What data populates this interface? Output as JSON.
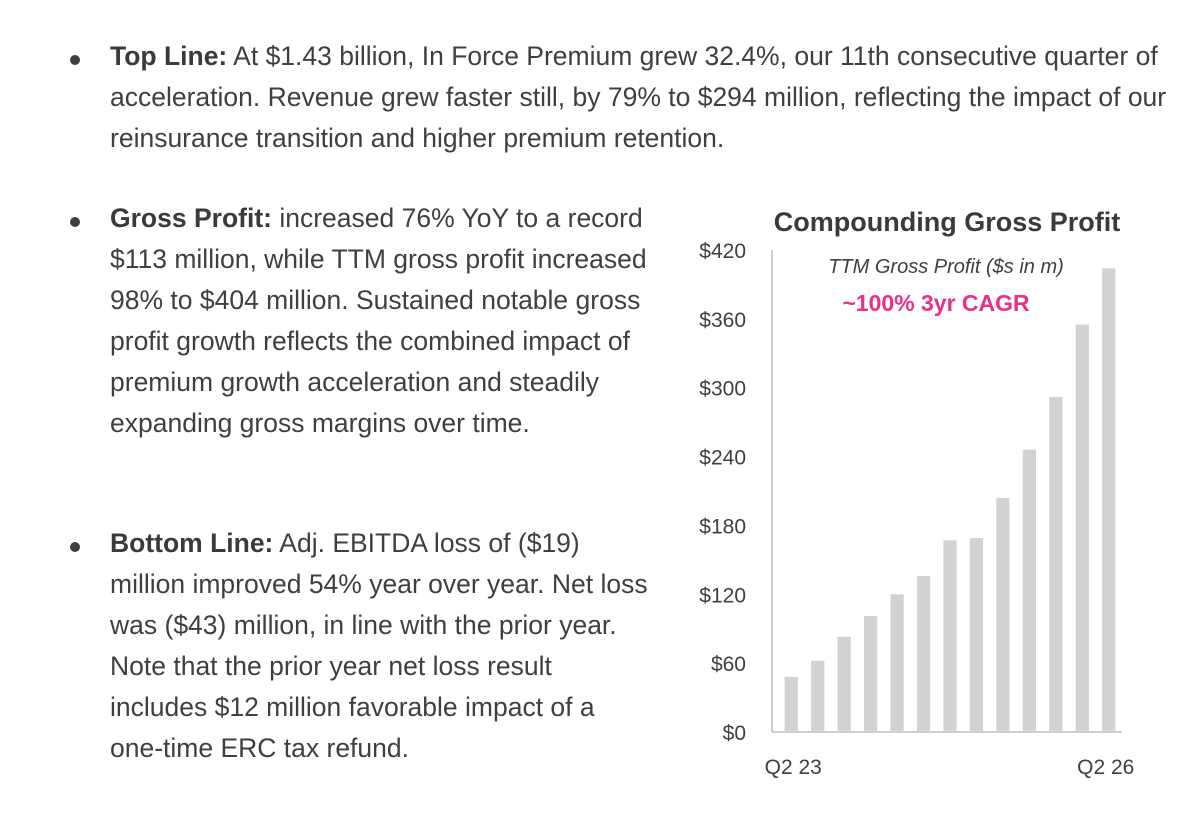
{
  "bullets": [
    {
      "lead": "Top Line:",
      "text": " At $1.43 billion, In Force Premium grew 32.4%, our 11th consecutive quarter of acceleration. Revenue grew faster still, by 79% to $294 million, reflecting the impact of our reinsurance transition and higher premium retention."
    },
    {
      "lead": "Gross Profit:",
      "text": " increased 76% YoY to a record $113 million, while TTM gross profit increased 98% to $404 million. Sustained notable gross profit growth reflects the combined impact of premium growth acceleration and steadily expanding gross margins over time."
    },
    {
      "lead": "Bottom Line:",
      "text": " Adj. EBITDA loss of ($19) million improved 54% year over year. Net loss was ($43) million, in line with the prior year. Note that the prior year net loss result includes $12 million favorable impact of a one-time ERC tax refund."
    }
  ],
  "chart_data": {
    "type": "bar",
    "title": "Compounding Gross Profit",
    "subtitle": "TTM Gross Profit ($s in m)",
    "annotation": "~100% 3yr CAGR",
    "x_tick_labels": [
      "Q2 23",
      "Q2 26"
    ],
    "y_ticks": [
      "$0",
      "$60",
      "$120",
      "$180",
      "$240",
      "$300",
      "$360",
      "$420"
    ],
    "ylim": [
      0,
      420
    ],
    "values": [
      48,
      62,
      83,
      101,
      120,
      136,
      167,
      169,
      204,
      246,
      292,
      355,
      404
    ],
    "grid": false,
    "legend": "none",
    "colors": {
      "bar": "#d2d2d2",
      "axis": "#bfbfbf",
      "annotation": "#e8308a"
    }
  }
}
